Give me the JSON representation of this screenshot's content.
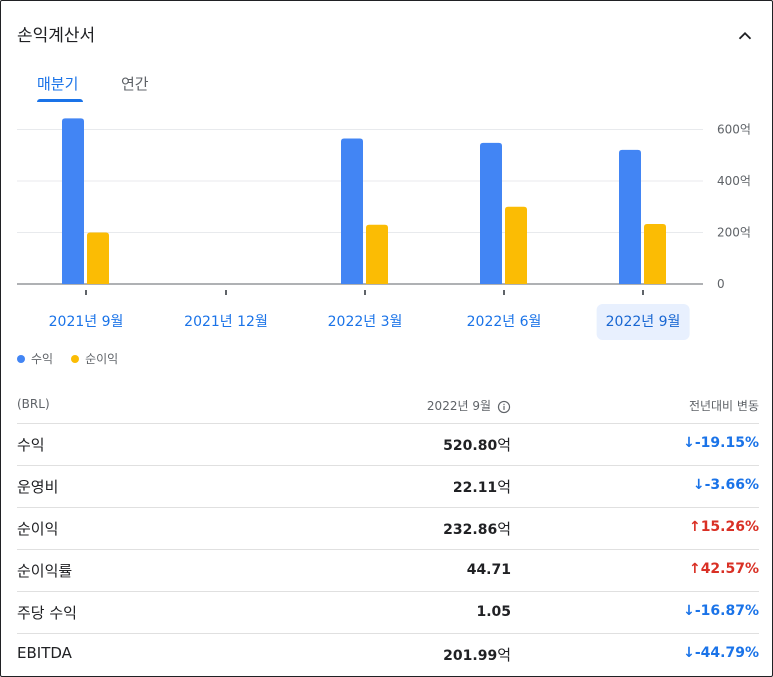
{
  "header": {
    "title": "손익계산서"
  },
  "tabs": [
    {
      "label": "매분기",
      "active": true
    },
    {
      "label": "연간",
      "active": false
    }
  ],
  "chart_data": {
    "type": "bar",
    "categories": [
      "2021년 9월",
      "2021년 12월",
      "2022년 3월",
      "2022년 6월",
      "2022년 9월"
    ],
    "selected_category": "2022년 9월",
    "series": [
      {
        "name": "수익",
        "color": "#4285f4",
        "values": [
          643,
          null,
          565,
          548,
          520.8
        ]
      },
      {
        "name": "순이익",
        "color": "#fbbc04",
        "values": [
          200,
          null,
          230,
          300,
          232.86
        ]
      }
    ],
    "yticks": [
      "0",
      "200억",
      "400억",
      "600억"
    ],
    "ytick_values": [
      0,
      200,
      400,
      600
    ],
    "ylim": [
      0,
      650
    ],
    "grid": true,
    "legend_position": "bottom-left"
  },
  "legend": [
    {
      "label": "수익",
      "color": "#4285f4"
    },
    {
      "label": "순이익",
      "color": "#fbbc04"
    }
  ],
  "table": {
    "headers": {
      "currency": "(BRL)",
      "period": "2022년 9월",
      "change": "전년대비 변동"
    },
    "rows": [
      {
        "name": "수익",
        "value": "520.80",
        "unit": "억",
        "arrow": "↓",
        "change": "-19.15%",
        "direction": "down"
      },
      {
        "name": "운영비",
        "value": "22.11",
        "unit": "억",
        "arrow": "↓",
        "change": "-3.66%",
        "direction": "down"
      },
      {
        "name": "순이익",
        "value": "232.86",
        "unit": "억",
        "arrow": "↑",
        "change": "15.26%",
        "direction": "up"
      },
      {
        "name": "순이익률",
        "value": "44.71",
        "unit": "",
        "arrow": "↑",
        "change": "42.57%",
        "direction": "up"
      },
      {
        "name": "주당 수익",
        "value": "1.05",
        "unit": "",
        "arrow": "↓",
        "change": "-16.87%",
        "direction": "down"
      },
      {
        "name": "EBITDA",
        "value": "201.99",
        "unit": "억",
        "arrow": "↓",
        "change": "-44.79%",
        "direction": "down"
      }
    ]
  }
}
